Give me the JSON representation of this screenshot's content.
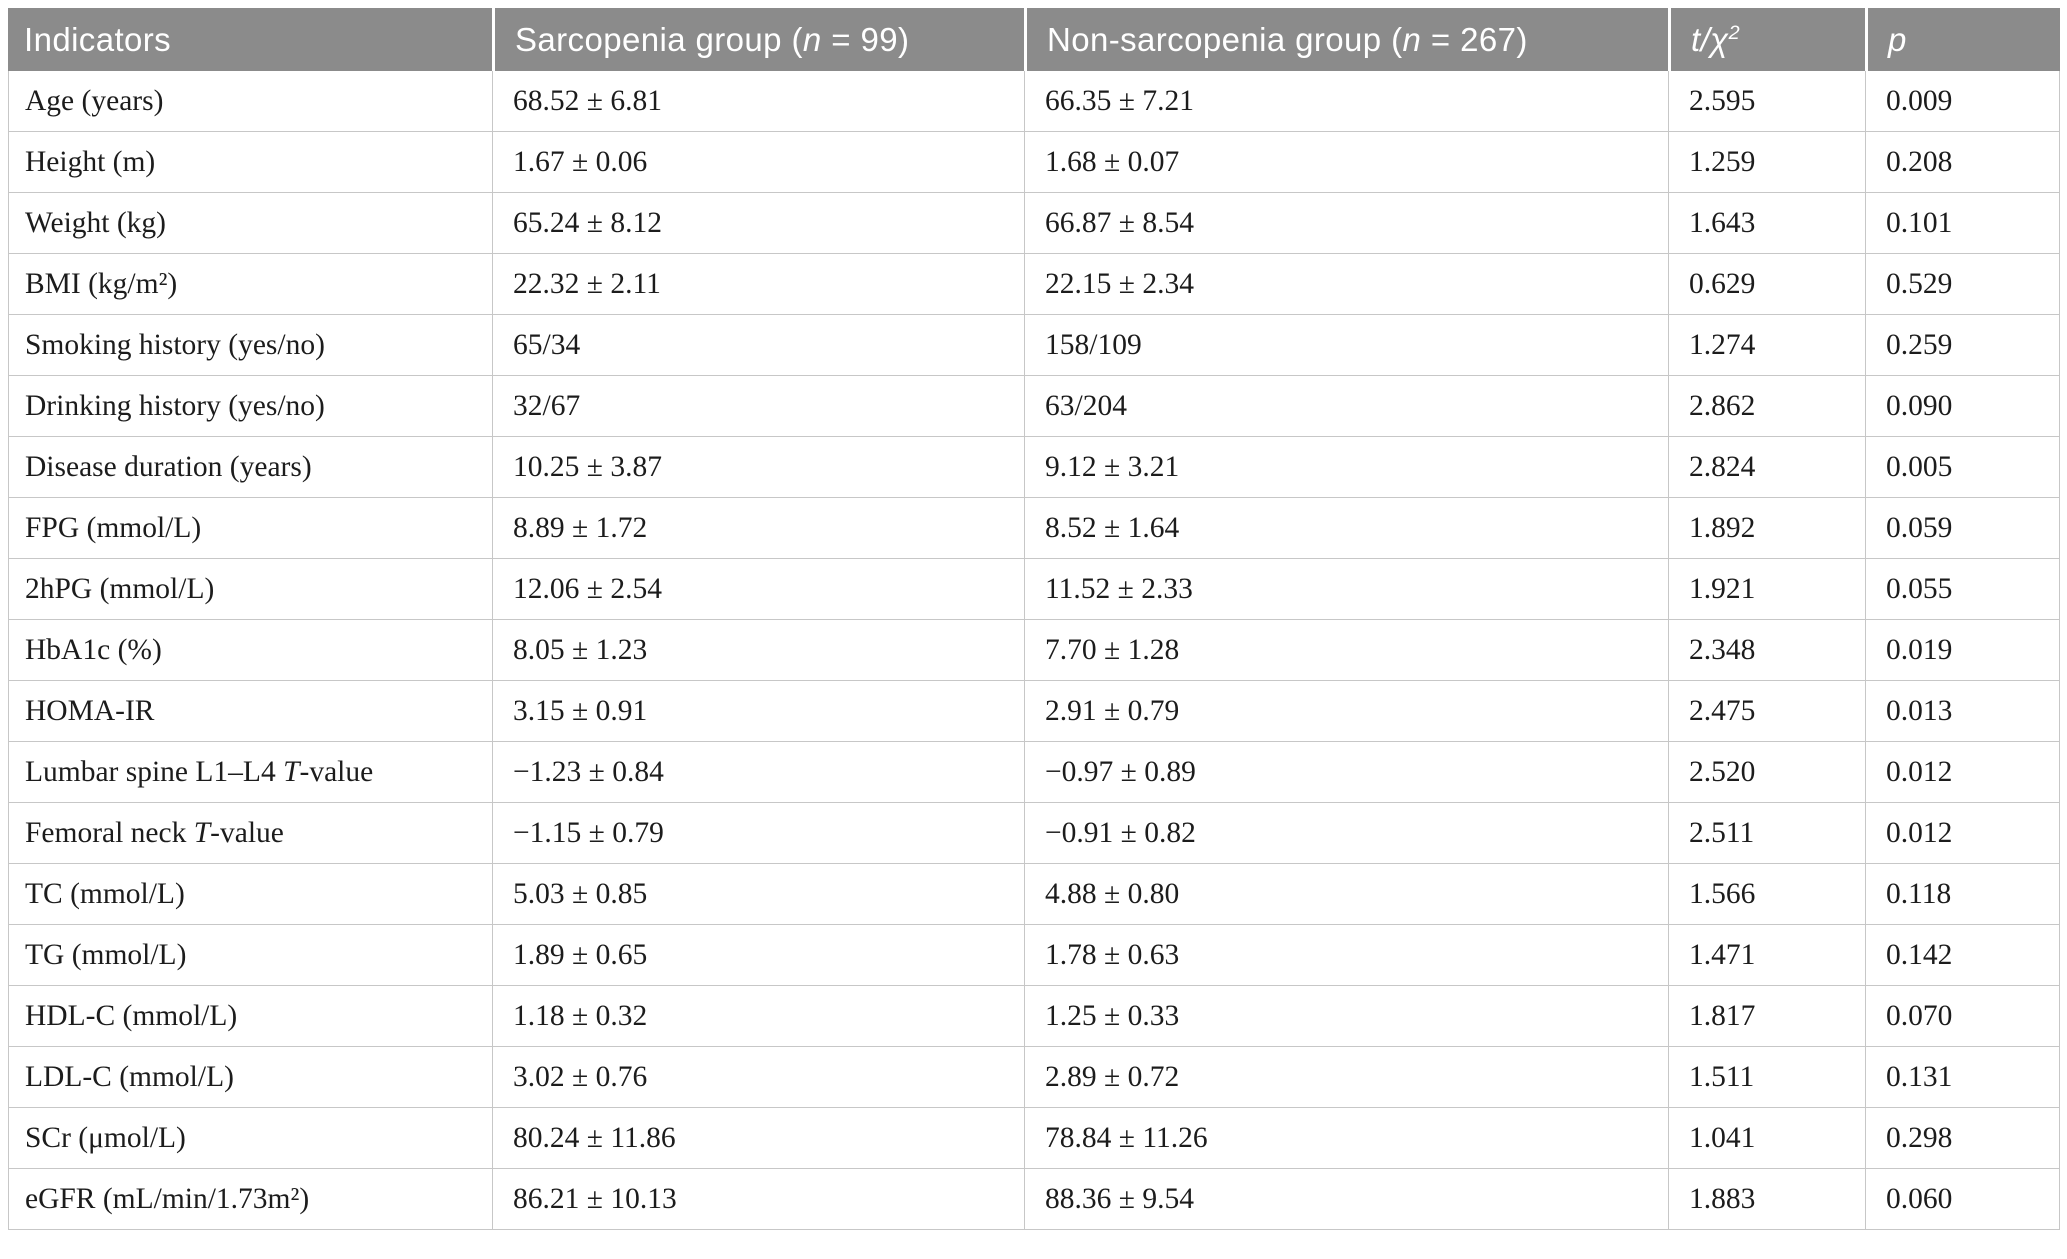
{
  "table": {
    "header": {
      "indicators": "Indicators",
      "sarcopenia_group": {
        "prefix": "Sarcopenia group (",
        "n": "n",
        "suffix": " = 99)"
      },
      "non_sarcopenia_group": {
        "prefix": "Non-sarcopenia group (",
        "n": "n",
        "suffix": " = 267)"
      },
      "t_chi2": {
        "t": "t",
        "slash": "/",
        "chi": "χ",
        "sup": "2"
      },
      "p": "p"
    },
    "rows": [
      {
        "indicator": "Age (years)",
        "sarcopenia": "68.52 ± 6.81",
        "non_sarcopenia": "66.35 ± 7.21",
        "t_chi2": "2.595",
        "p": "0.009"
      },
      {
        "indicator": "Height (m)",
        "sarcopenia": "1.67 ± 0.06",
        "non_sarcopenia": "1.68 ± 0.07",
        "t_chi2": "1.259",
        "p": "0.208"
      },
      {
        "indicator": "Weight (kg)",
        "sarcopenia": "65.24 ± 8.12",
        "non_sarcopenia": "66.87 ± 8.54",
        "t_chi2": "1.643",
        "p": "0.101"
      },
      {
        "indicator": "BMI (kg/m²)",
        "sarcopenia": "22.32 ± 2.11",
        "non_sarcopenia": "22.15 ± 2.34",
        "t_chi2": "0.629",
        "p": "0.529"
      },
      {
        "indicator": "Smoking history (yes/no)",
        "sarcopenia": "65/34",
        "non_sarcopenia": "158/109",
        "t_chi2": "1.274",
        "p": "0.259"
      },
      {
        "indicator": "Drinking history (yes/no)",
        "sarcopenia": "32/67",
        "non_sarcopenia": "63/204",
        "t_chi2": "2.862",
        "p": "0.090"
      },
      {
        "indicator": "Disease duration (years)",
        "sarcopenia": "10.25 ± 3.87",
        "non_sarcopenia": "9.12 ± 3.21",
        "t_chi2": "2.824",
        "p": "0.005"
      },
      {
        "indicator": "FPG (mmol/L)",
        "sarcopenia": "8.89 ± 1.72",
        "non_sarcopenia": "8.52 ± 1.64",
        "t_chi2": "1.892",
        "p": "0.059"
      },
      {
        "indicator": "2hPG (mmol/L)",
        "sarcopenia": "12.06 ± 2.54",
        "non_sarcopenia": "11.52 ± 2.33",
        "t_chi2": "1.921",
        "p": "0.055"
      },
      {
        "indicator": "HbA1c (%)",
        "sarcopenia": "8.05 ± 1.23",
        "non_sarcopenia": "7.70 ± 1.28",
        "t_chi2": "2.348",
        "p": "0.019"
      },
      {
        "indicator": "HOMA-IR",
        "sarcopenia": "3.15 ± 0.91",
        "non_sarcopenia": "2.91 ± 0.79",
        "t_chi2": "2.475",
        "p": "0.013"
      },
      {
        "indicator": "Lumbar spine L1–L4 T-value",
        "sarcopenia": "−1.23 ± 0.84",
        "non_sarcopenia": "−0.97 ± 0.89",
        "t_chi2": "2.520",
        "p": "0.012"
      },
      {
        "indicator": "Femoral neck T-value",
        "sarcopenia": "−1.15 ± 0.79",
        "non_sarcopenia": "−0.91 ± 0.82",
        "t_chi2": "2.511",
        "p": "0.012"
      },
      {
        "indicator": "TC (mmol/L)",
        "sarcopenia": "5.03 ± 0.85",
        "non_sarcopenia": "4.88 ± 0.80",
        "t_chi2": "1.566",
        "p": "0.118"
      },
      {
        "indicator": "TG (mmol/L)",
        "sarcopenia": "1.89 ± 0.65",
        "non_sarcopenia": "1.78 ± 0.63",
        "t_chi2": "1.471",
        "p": "0.142"
      },
      {
        "indicator": "HDL-C (mmol/L)",
        "sarcopenia": "1.18 ± 0.32",
        "non_sarcopenia": "1.25 ± 0.33",
        "t_chi2": "1.817",
        "p": "0.070"
      },
      {
        "indicator": "LDL-C (mmol/L)",
        "sarcopenia": "3.02 ± 0.76",
        "non_sarcopenia": "2.89 ± 0.72",
        "t_chi2": "1.511",
        "p": "0.131"
      },
      {
        "indicator": "SCr (μmol/L)",
        "sarcopenia": "80.24 ± 11.86",
        "non_sarcopenia": "78.84 ± 11.26",
        "t_chi2": "1.041",
        "p": "0.298"
      },
      {
        "indicator": "eGFR (mL/min/1.73m²)",
        "sarcopenia": "86.21 ± 10.13",
        "non_sarcopenia": "88.36 ± 9.54",
        "t_chi2": "1.883",
        "p": "0.060"
      }
    ],
    "colors": {
      "header_bg": "#8b8b8b",
      "header_text": "#ffffff",
      "grid_line": "#c7c7c7",
      "body_text": "#1c1c1c"
    }
  }
}
